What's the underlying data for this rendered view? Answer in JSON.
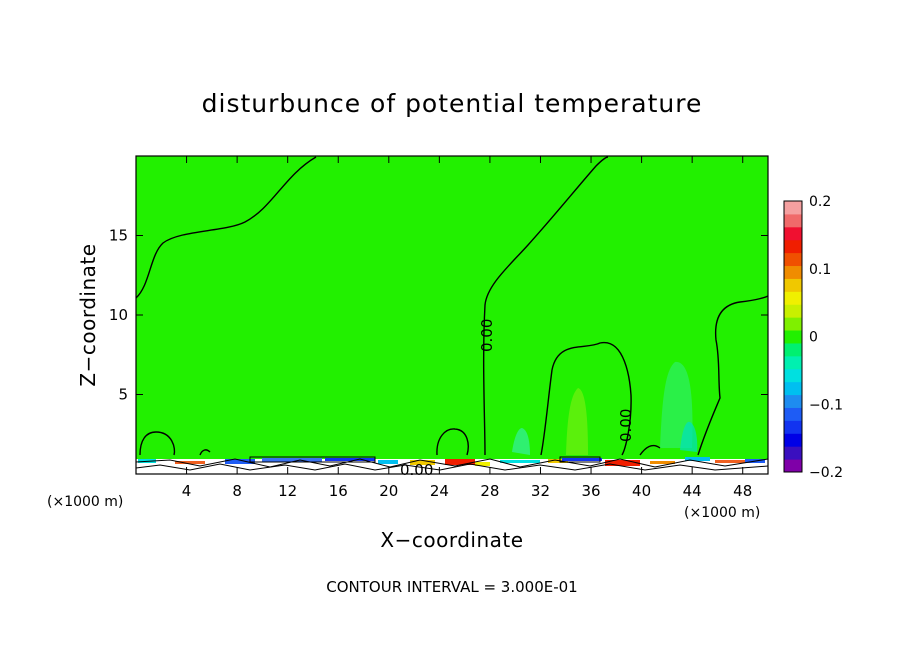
{
  "chart_data": {
    "type": "heatmap",
    "title": "disturbunce of potential temperature",
    "xlabel": "X−coordinate",
    "ylabel": "Z−coordinate",
    "x_unit": "(×1000 m)",
    "x_unit_right": "(×1000 m)",
    "xlim": [
      0,
      50
    ],
    "ylim": [
      0,
      20
    ],
    "x_ticks": [
      4,
      8,
      12,
      16,
      20,
      24,
      28,
      32,
      36,
      40,
      44,
      48
    ],
    "y_ticks": [
      5,
      10,
      15
    ],
    "x_tick_labels": [
      "4",
      "8",
      "12",
      "16",
      "20",
      "24",
      "28",
      "32",
      "36",
      "40",
      "44",
      "48"
    ],
    "y_tick_labels": [
      "5",
      "10",
      "15"
    ],
    "contour_labels": [
      "0.00",
      "0.00",
      "0.00"
    ],
    "contour_interval_text": "CONTOUR INTERVAL = 3.000E-01",
    "colorbar": {
      "range": [
        -0.2,
        0.2
      ],
      "tick_values": [
        0.2,
        0.1,
        0,
        -0.1,
        -0.2
      ],
      "tick_labels": [
        "0.2",
        "0.1",
        "0",
        "−0.1",
        "−0.2"
      ],
      "colors": [
        "#7f00a8",
        "#3a0fbf",
        "#0000e6",
        "#1233f0",
        "#1e5cf5",
        "#1e8cf0",
        "#00bff0",
        "#00e0e0",
        "#00f0b0",
        "#00f070",
        "#22f000",
        "#7ff000",
        "#c8f000",
        "#f0f000",
        "#f0c800",
        "#f08c00",
        "#f05000",
        "#f01e00",
        "#f01030",
        "#f06a6a",
        "#f5a0a0"
      ]
    },
    "background_value": 0.0,
    "background_color": "#22f000"
  }
}
